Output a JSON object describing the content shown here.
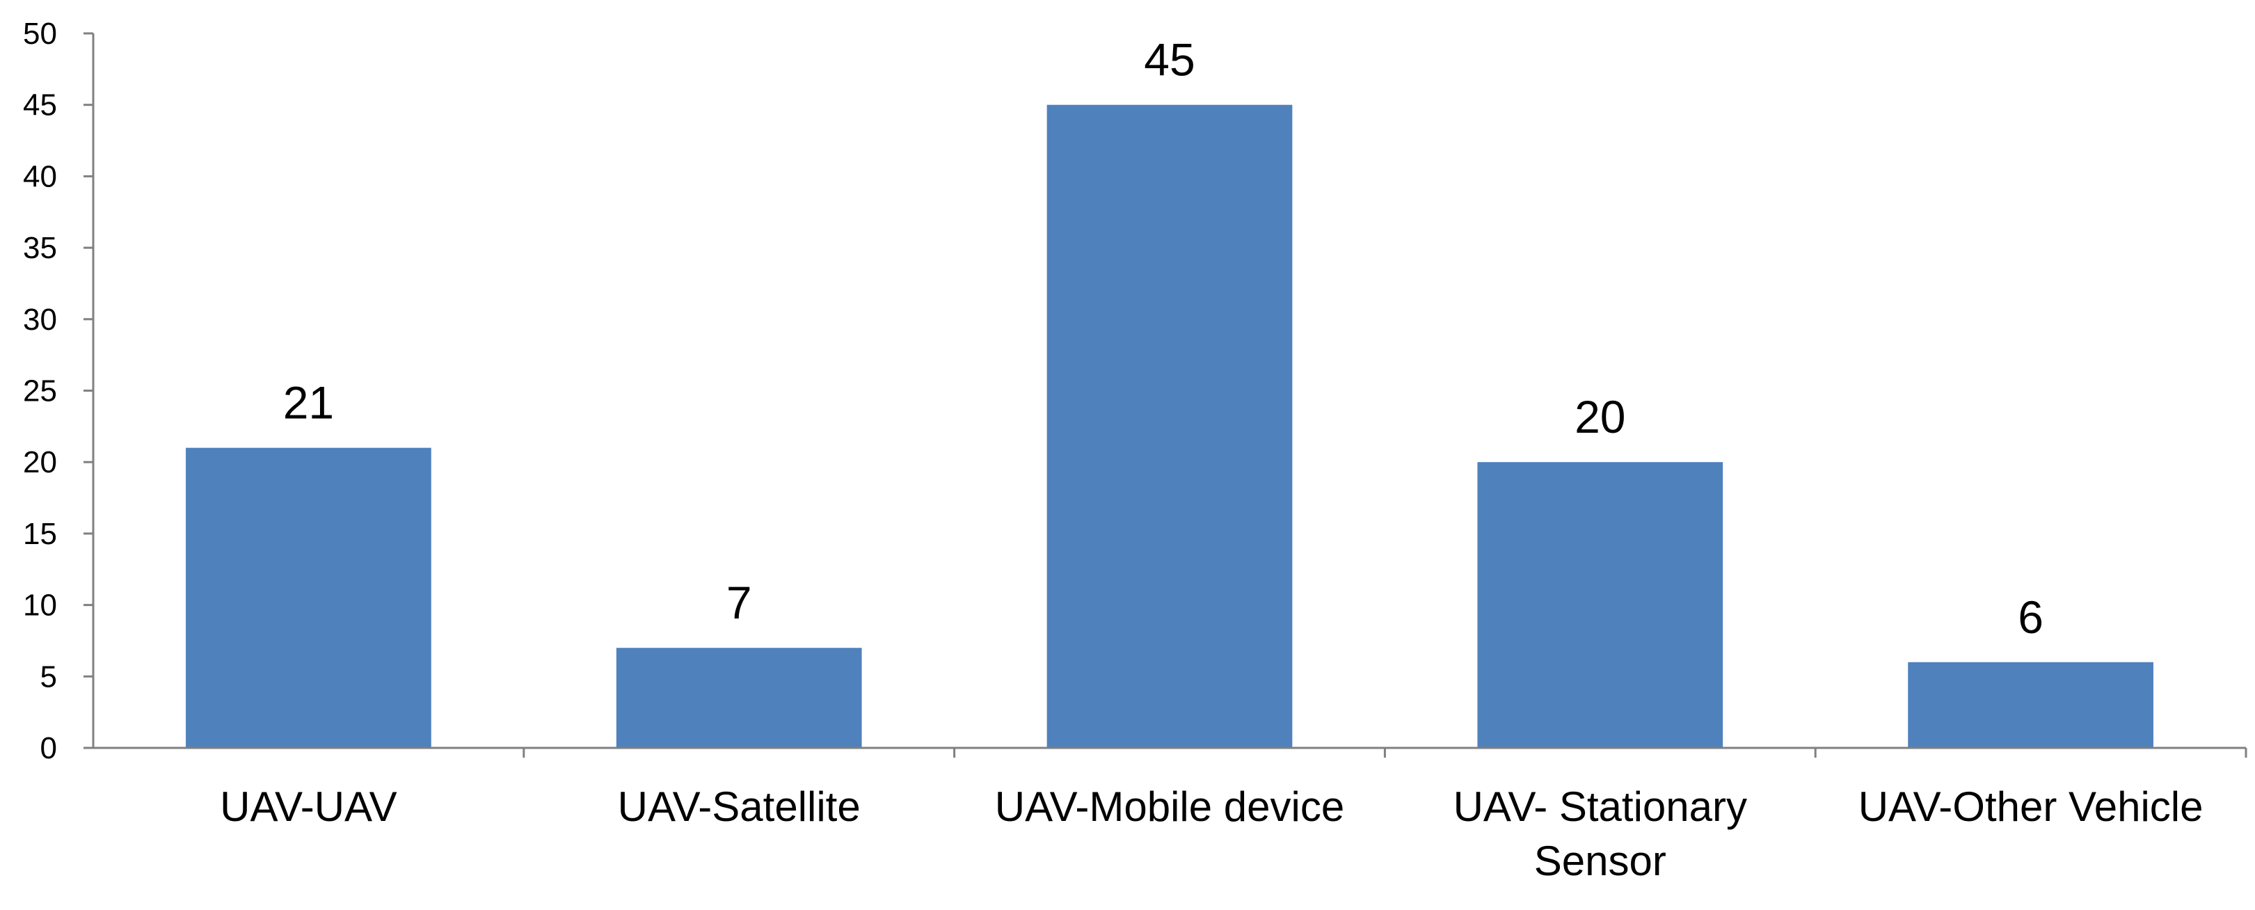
{
  "chart_data": {
    "type": "bar",
    "title": "",
    "xlabel": "",
    "ylabel": "",
    "categories": [
      [
        "UAV-UAV"
      ],
      [
        "UAV-Satellite"
      ],
      [
        "UAV-Mobile device"
      ],
      [
        "UAV- Stationary",
        "Sensor"
      ],
      [
        "UAV-Other Vehicle"
      ]
    ],
    "values": [
      21,
      7,
      45,
      20,
      6
    ],
    "data_labels": [
      "21",
      "7",
      "45",
      "20",
      "6"
    ],
    "ylim": [
      0,
      50
    ],
    "y_ticks": [
      0,
      5,
      10,
      15,
      20,
      25,
      30,
      35,
      40,
      45,
      50
    ],
    "grid": false,
    "legend": "none",
    "bar_color": "#4F81BD"
  }
}
